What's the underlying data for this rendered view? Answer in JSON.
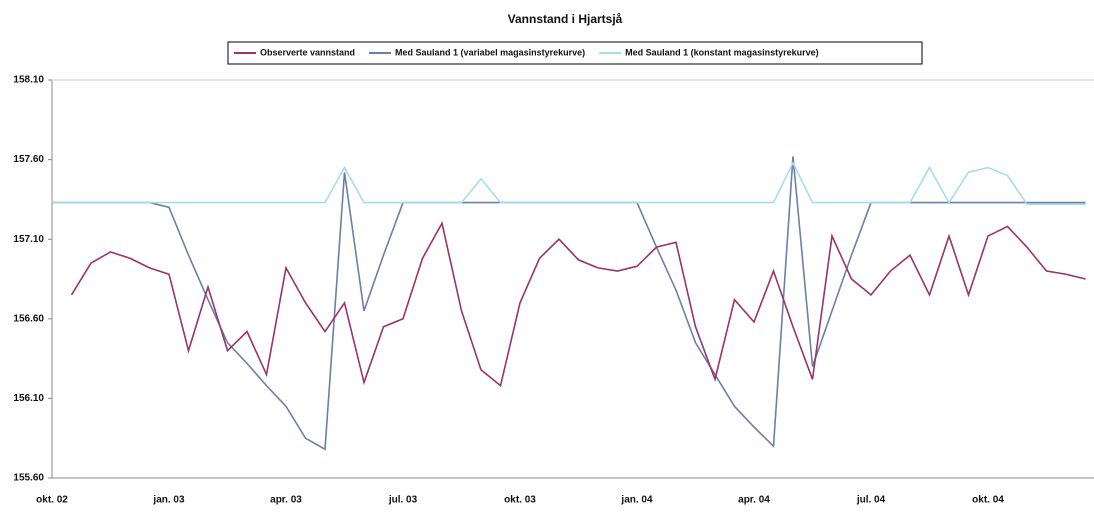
{
  "chart_data": {
    "type": "line",
    "title": "Vannstand i Hjartsjå",
    "categories": [
      "okt. 02",
      null,
      null,
      null,
      null,
      null,
      "jan. 03",
      null,
      null,
      null,
      null,
      null,
      "apr. 03",
      null,
      null,
      null,
      null,
      null,
      "jul. 03",
      null,
      null,
      null,
      null,
      null,
      "okt. 03",
      null,
      null,
      null,
      null,
      null,
      "jan. 04",
      null,
      null,
      null,
      null,
      null,
      "apr. 04",
      null,
      null,
      null,
      null,
      null,
      "jul. 04",
      null,
      null,
      null,
      null,
      null,
      "okt. 04",
      null,
      null,
      null,
      null,
      null
    ],
    "series": [
      {
        "name": "Med Sauland 1 (variabel magasinstyrekurve)",
        "color": "#6b7fa8",
        "values": [
          157.33,
          157.33,
          157.33,
          157.33,
          157.33,
          157.33,
          157.3,
          157.0,
          156.72,
          156.45,
          156.32,
          156.18,
          156.05,
          155.85,
          155.78,
          157.52,
          156.65,
          157.0,
          157.33,
          157.33,
          157.33,
          157.33,
          157.33,
          157.33,
          157.33,
          157.33,
          157.33,
          157.33,
          157.33,
          157.33,
          157.33,
          157.05,
          156.78,
          156.45,
          156.25,
          156.05,
          155.92,
          155.8,
          157.62,
          156.3,
          156.65,
          157.0,
          157.33,
          157.33,
          157.33,
          157.33,
          157.33,
          157.33,
          157.33,
          157.33,
          157.33,
          157.33,
          157.33,
          157.33
        ]
      },
      {
        "name": "Med Sauland 1 (konstant magasinstyrekurve)",
        "color": "#a6dcec",
        "values": [
          157.33,
          157.33,
          157.33,
          157.33,
          157.33,
          157.33,
          157.33,
          157.33,
          157.33,
          157.33,
          157.33,
          157.33,
          157.33,
          157.33,
          157.33,
          157.55,
          157.33,
          157.33,
          157.33,
          157.33,
          157.33,
          157.33,
          157.48,
          157.33,
          157.33,
          157.33,
          157.33,
          157.33,
          157.33,
          157.33,
          157.33,
          157.33,
          157.33,
          157.33,
          157.33,
          157.33,
          157.33,
          157.33,
          157.58,
          157.33,
          157.33,
          157.33,
          157.33,
          157.33,
          157.33,
          157.55,
          157.33,
          157.52,
          157.55,
          157.5,
          157.32,
          157.32,
          157.32,
          157.32
        ]
      },
      {
        "name": "Observerte vannstand",
        "color": "#99336b",
        "values": [
          null,
          156.75,
          156.95,
          157.02,
          156.98,
          156.92,
          156.88,
          156.4,
          156.8,
          156.4,
          156.52,
          156.25,
          156.92,
          156.7,
          156.52,
          156.7,
          156.2,
          156.55,
          156.6,
          156.98,
          157.2,
          156.65,
          156.28,
          156.18,
          156.7,
          156.98,
          157.1,
          156.97,
          156.92,
          156.9,
          156.93,
          157.05,
          157.08,
          156.55,
          156.22,
          156.72,
          156.58,
          156.9,
          156.55,
          156.22,
          157.12,
          156.85,
          156.75,
          156.9,
          157.0,
          156.75,
          157.12,
          156.75,
          157.12,
          157.18,
          157.05,
          156.9,
          156.88,
          156.85
        ]
      }
    ],
    "legend_order": [
      2,
      0,
      1
    ],
    "ylim": [
      155.6,
      158.1
    ],
    "yticks": [
      {
        "value": 155.6,
        "label": "155.60"
      },
      {
        "value": 156.1,
        "label": "156.10"
      },
      {
        "value": 156.6,
        "label": "156.60"
      },
      {
        "value": 157.1,
        "label": "157.10"
      },
      {
        "value": 157.6,
        "label": "157.60"
      },
      {
        "value": 158.1,
        "label": "158.10"
      }
    ],
    "grid": false
  }
}
